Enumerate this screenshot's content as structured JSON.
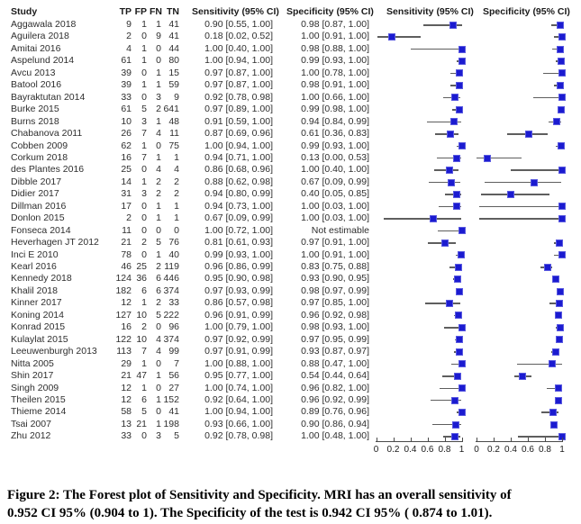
{
  "table_header": {
    "study": "Study",
    "tp": "TP",
    "fp": "FP",
    "fn": "FN",
    "tn": "TN",
    "sensitivity": "Sensitivity (95% CI)",
    "specificity": "Specificity (95% CI)"
  },
  "plot_headers": {
    "sensitivity": "Sensitivity (95% CI)",
    "specificity": "Specificity (95% CI)"
  },
  "not_estimable_label": "Not estimable",
  "colors": {
    "marker_blue": "#1b1bd0",
    "ci_line_gray": "#5e5e5e",
    "axis_color": "#4a4a4a"
  },
  "caption": {
    "line1": "Figure 2: The Forest plot of Sensitivity and Specificity. MRI has an overall sensitivity of",
    "line2": "0.952 CI 95% (0.904 to 1). The Specificity of the test is 0.942 CI 95% ( 0.874 to 1.01)."
  },
  "chart_data": {
    "type": "forest",
    "panels": [
      "Sensitivity (95% CI)",
      "Specificity (95% CI)"
    ],
    "axis": {
      "range": [
        0,
        1
      ],
      "ticks": [
        0,
        0.2,
        0.4,
        0.6,
        0.8,
        1
      ],
      "tick_labels": [
        "0",
        "0.2",
        "0.4",
        "0.6",
        "0.8",
        "1"
      ]
    },
    "overall": {
      "sensitivity": {
        "est": 0.952,
        "ci": [
          0.904,
          1.0
        ]
      },
      "specificity": {
        "est": 0.942,
        "ci": [
          0.874,
          1.01
        ]
      }
    },
    "studies": [
      {
        "study": "Aggawala 2018",
        "tp": 9,
        "fp": 1,
        "fn": 1,
        "tn": 41,
        "sensitivity": {
          "est": 0.9,
          "ci": [
            0.55,
            1.0
          ],
          "label": "0.90 [0.55, 1.00]"
        },
        "specificity": {
          "est": 0.98,
          "ci": [
            0.87,
            1.0
          ],
          "label": "0.98 [0.87, 1.00]"
        }
      },
      {
        "study": "Aguilera 2018",
        "tp": 2,
        "fp": 0,
        "fn": 9,
        "tn": 41,
        "sensitivity": {
          "est": 0.18,
          "ci": [
            0.02,
            0.52
          ],
          "label": "0.18 [0.02, 0.52]"
        },
        "specificity": {
          "est": 1.0,
          "ci": [
            0.91,
            1.0
          ],
          "label": "1.00 [0.91, 1.00]"
        }
      },
      {
        "study": "Amitai 2016",
        "tp": 4,
        "fp": 1,
        "fn": 0,
        "tn": 44,
        "sensitivity": {
          "est": 1.0,
          "ci": [
            0.4,
            1.0
          ],
          "label": "1.00 [0.40, 1.00]"
        },
        "specificity": {
          "est": 0.98,
          "ci": [
            0.88,
            1.0
          ],
          "label": "0.98 [0.88, 1.00]"
        }
      },
      {
        "study": "Aspelund 2014",
        "tp": 61,
        "fp": 1,
        "fn": 0,
        "tn": 80,
        "sensitivity": {
          "est": 1.0,
          "ci": [
            0.94,
            1.0
          ],
          "label": "1.00 [0.94, 1.00]"
        },
        "specificity": {
          "est": 0.99,
          "ci": [
            0.93,
            1.0
          ],
          "label": "0.99 [0.93, 1.00]"
        }
      },
      {
        "study": "Avcu 2013",
        "tp": 39,
        "fp": 0,
        "fn": 1,
        "tn": 15,
        "sensitivity": {
          "est": 0.97,
          "ci": [
            0.87,
            1.0
          ],
          "label": "0.97 [0.87, 1.00]"
        },
        "specificity": {
          "est": 1.0,
          "ci": [
            0.78,
            1.0
          ],
          "label": "1.00 [0.78, 1.00]"
        }
      },
      {
        "study": "Batool 2016",
        "tp": 39,
        "fp": 1,
        "fn": 1,
        "tn": 59,
        "sensitivity": {
          "est": 0.97,
          "ci": [
            0.87,
            1.0
          ],
          "label": "0.97 [0.87, 1.00]"
        },
        "specificity": {
          "est": 0.98,
          "ci": [
            0.91,
            1.0
          ],
          "label": "0.98 [0.91, 1.00]"
        }
      },
      {
        "study": "Bayraktutan 2014",
        "tp": 33,
        "fp": 0,
        "fn": 3,
        "tn": 9,
        "sensitivity": {
          "est": 0.92,
          "ci": [
            0.78,
            0.98
          ],
          "label": "0.92 [0.78, 0.98]"
        },
        "specificity": {
          "est": 1.0,
          "ci": [
            0.66,
            1.0
          ],
          "label": "1.00 [0.66, 1.00]"
        }
      },
      {
        "study": "Burke 2015",
        "tp": 61,
        "fp": 5,
        "fn": 2,
        "tn": 641,
        "sensitivity": {
          "est": 0.97,
          "ci": [
            0.89,
            1.0
          ],
          "label": "0.97 [0.89, 1.00]"
        },
        "specificity": {
          "est": 0.99,
          "ci": [
            0.98,
            1.0
          ],
          "label": "0.99 [0.98, 1.00]"
        }
      },
      {
        "study": "Burns 2018",
        "tp": 10,
        "fp": 3,
        "fn": 1,
        "tn": 48,
        "sensitivity": {
          "est": 0.91,
          "ci": [
            0.59,
            1.0
          ],
          "label": "0.91 [0.59, 1.00]"
        },
        "specificity": {
          "est": 0.94,
          "ci": [
            0.84,
            0.99
          ],
          "label": "0.94 [0.84, 0.99]"
        }
      },
      {
        "study": "Chabanova 2011",
        "tp": 26,
        "fp": 7,
        "fn": 4,
        "tn": 11,
        "sensitivity": {
          "est": 0.87,
          "ci": [
            0.69,
            0.96
          ],
          "label": "0.87 [0.69, 0.96]"
        },
        "specificity": {
          "est": 0.61,
          "ci": [
            0.36,
            0.83
          ],
          "label": "0.61 [0.36, 0.83]"
        }
      },
      {
        "study": "Cobben 2009",
        "tp": 62,
        "fp": 1,
        "fn": 0,
        "tn": 75,
        "sensitivity": {
          "est": 1.0,
          "ci": [
            0.94,
            1.0
          ],
          "label": "1.00 [0.94, 1.00]"
        },
        "specificity": {
          "est": 0.99,
          "ci": [
            0.93,
            1.0
          ],
          "label": "0.99 [0.93, 1.00]"
        }
      },
      {
        "study": "Corkum 2018",
        "tp": 16,
        "fp": 7,
        "fn": 1,
        "tn": 1,
        "sensitivity": {
          "est": 0.94,
          "ci": [
            0.71,
            1.0
          ],
          "label": "0.94 [0.71, 1.00]"
        },
        "specificity": {
          "est": 0.13,
          "ci": [
            0.0,
            0.53
          ],
          "label": "0.13 [0.00, 0.53]"
        }
      },
      {
        "study": "des Plantes 2016",
        "tp": 25,
        "fp": 0,
        "fn": 4,
        "tn": 4,
        "sensitivity": {
          "est": 0.86,
          "ci": [
            0.68,
            0.96
          ],
          "label": "0.86 [0.68, 0.96]"
        },
        "specificity": {
          "est": 1.0,
          "ci": [
            0.4,
            1.0
          ],
          "label": "1.00 [0.40, 1.00]"
        }
      },
      {
        "study": "Dibble 2017",
        "tp": 14,
        "fp": 1,
        "fn": 2,
        "tn": 2,
        "sensitivity": {
          "est": 0.88,
          "ci": [
            0.62,
            0.98
          ],
          "label": "0.88 [0.62, 0.98]"
        },
        "specificity": {
          "est": 0.67,
          "ci": [
            0.09,
            0.99
          ],
          "label": "0.67 [0.09, 0.99]"
        }
      },
      {
        "study": "Didier 2017",
        "tp": 31,
        "fp": 3,
        "fn": 2,
        "tn": 2,
        "sensitivity": {
          "est": 0.94,
          "ci": [
            0.8,
            0.99
          ],
          "label": "0.94 [0.80, 0.99]"
        },
        "specificity": {
          "est": 0.4,
          "ci": [
            0.05,
            0.85
          ],
          "label": "0.40 [0.05, 0.85]"
        }
      },
      {
        "study": "Dillman 2016",
        "tp": 17,
        "fp": 0,
        "fn": 1,
        "tn": 1,
        "sensitivity": {
          "est": 0.94,
          "ci": [
            0.73,
            1.0
          ],
          "label": "0.94 [0.73, 1.00]"
        },
        "specificity": {
          "est": 1.0,
          "ci": [
            0.03,
            1.0
          ],
          "label": "1.00 [0.03, 1.00]"
        }
      },
      {
        "study": "Donlon 2015",
        "tp": 2,
        "fp": 0,
        "fn": 1,
        "tn": 1,
        "sensitivity": {
          "est": 0.67,
          "ci": [
            0.09,
            0.99
          ],
          "label": "0.67 [0.09, 0.99]"
        },
        "specificity": {
          "est": 1.0,
          "ci": [
            0.03,
            1.0
          ],
          "label": "1.00 [0.03, 1.00]"
        }
      },
      {
        "study": "Fonseca 2014",
        "tp": 11,
        "fp": 0,
        "fn": 0,
        "tn": 0,
        "sensitivity": {
          "est": 1.0,
          "ci": [
            0.72,
            1.0
          ],
          "label": "1.00 [0.72, 1.00]"
        },
        "specificity": null
      },
      {
        "study": "Heverhagen JT 2012",
        "tp": 21,
        "fp": 2,
        "fn": 5,
        "tn": 76,
        "sensitivity": {
          "est": 0.81,
          "ci": [
            0.61,
            0.93
          ],
          "label": "0.81 [0.61, 0.93]"
        },
        "specificity": {
          "est": 0.97,
          "ci": [
            0.91,
            1.0
          ],
          "label": "0.97 [0.91, 1.00]"
        }
      },
      {
        "study": "Inci E 2010",
        "tp": 78,
        "fp": 0,
        "fn": 1,
        "tn": 40,
        "sensitivity": {
          "est": 0.99,
          "ci": [
            0.93,
            1.0
          ],
          "label": "0.99 [0.93, 1.00]"
        },
        "specificity": {
          "est": 1.0,
          "ci": [
            0.91,
            1.0
          ],
          "label": "1.00 [0.91, 1.00]"
        }
      },
      {
        "study": "Kearl 2016",
        "tp": 46,
        "fp": 25,
        "fn": 2,
        "tn": 119,
        "sensitivity": {
          "est": 0.96,
          "ci": [
            0.86,
            0.99
          ],
          "label": "0.96 [0.86, 0.99]"
        },
        "specificity": {
          "est": 0.83,
          "ci": [
            0.75,
            0.88
          ],
          "label": "0.83 [0.75, 0.88]"
        }
      },
      {
        "study": "Kennedy 2018",
        "tp": 124,
        "fp": 36,
        "fn": 6,
        "tn": 446,
        "sensitivity": {
          "est": 0.95,
          "ci": [
            0.9,
            0.98
          ],
          "label": "0.95 [0.90, 0.98]"
        },
        "specificity": {
          "est": 0.93,
          "ci": [
            0.9,
            0.95
          ],
          "label": "0.93 [0.90, 0.95]"
        }
      },
      {
        "study": "Khalil 2018",
        "tp": 182,
        "fp": 6,
        "fn": 6,
        "tn": 374,
        "sensitivity": {
          "est": 0.97,
          "ci": [
            0.93,
            0.99
          ],
          "label": "0.97 [0.93, 0.99]"
        },
        "specificity": {
          "est": 0.98,
          "ci": [
            0.97,
            0.99
          ],
          "label": "0.98 [0.97, 0.99]"
        }
      },
      {
        "study": "Kinner 2017",
        "tp": 12,
        "fp": 1,
        "fn": 2,
        "tn": 33,
        "sensitivity": {
          "est": 0.86,
          "ci": [
            0.57,
            0.98
          ],
          "label": "0.86 [0.57, 0.98]"
        },
        "specificity": {
          "est": 0.97,
          "ci": [
            0.85,
            1.0
          ],
          "label": "0.97 [0.85, 1.00]"
        }
      },
      {
        "study": "Koning 2014",
        "tp": 127,
        "fp": 10,
        "fn": 5,
        "tn": 222,
        "sensitivity": {
          "est": 0.96,
          "ci": [
            0.91,
            0.99
          ],
          "label": "0.96 [0.91, 0.99]"
        },
        "specificity": {
          "est": 0.96,
          "ci": [
            0.92,
            0.98
          ],
          "label": "0.96 [0.92, 0.98]"
        }
      },
      {
        "study": "Konrad 2015",
        "tp": 16,
        "fp": 2,
        "fn": 0,
        "tn": 96,
        "sensitivity": {
          "est": 1.0,
          "ci": [
            0.79,
            1.0
          ],
          "label": "1.00 [0.79, 1.00]"
        },
        "specificity": {
          "est": 0.98,
          "ci": [
            0.93,
            1.0
          ],
          "label": "0.98 [0.93, 1.00]"
        }
      },
      {
        "study": "Kulaylat 2015",
        "tp": 122,
        "fp": 10,
        "fn": 4,
        "tn": 374,
        "sensitivity": {
          "est": 0.97,
          "ci": [
            0.92,
            0.99
          ],
          "label": "0.97 [0.92, 0.99]"
        },
        "specificity": {
          "est": 0.97,
          "ci": [
            0.95,
            0.99
          ],
          "label": "0.97 [0.95, 0.99]"
        }
      },
      {
        "study": "Leeuwenburgh 2013",
        "tp": 113,
        "fp": 7,
        "fn": 4,
        "tn": 99,
        "sensitivity": {
          "est": 0.97,
          "ci": [
            0.91,
            0.99
          ],
          "label": "0.97 [0.91, 0.99]"
        },
        "specificity": {
          "est": 0.93,
          "ci": [
            0.87,
            0.97
          ],
          "label": "0.93 [0.87, 0.97]"
        }
      },
      {
        "study": "Nitta 2005",
        "tp": 29,
        "fp": 1,
        "fn": 0,
        "tn": 7,
        "sensitivity": {
          "est": 1.0,
          "ci": [
            0.88,
            1.0
          ],
          "label": "1.00 [0.88, 1.00]"
        },
        "specificity": {
          "est": 0.88,
          "ci": [
            0.47,
            1.0
          ],
          "label": "0.88 [0.47, 1.00]"
        }
      },
      {
        "study": "Shin 2017",
        "tp": 21,
        "fp": 47,
        "fn": 1,
        "tn": 56,
        "sensitivity": {
          "est": 0.95,
          "ci": [
            0.77,
            1.0
          ],
          "label": "0.95 [0.77, 1.00]"
        },
        "specificity": {
          "est": 0.54,
          "ci": [
            0.44,
            0.64
          ],
          "label": "0.54 [0.44, 0.64]"
        }
      },
      {
        "study": "Singh 2009",
        "tp": 12,
        "fp": 1,
        "fn": 0,
        "tn": 27,
        "sensitivity": {
          "est": 1.0,
          "ci": [
            0.74,
            1.0
          ],
          "label": "1.00 [0.74, 1.00]"
        },
        "specificity": {
          "est": 0.96,
          "ci": [
            0.82,
            1.0
          ],
          "label": "0.96 [0.82, 1.00]"
        }
      },
      {
        "study": "Theilen 2015",
        "tp": 12,
        "fp": 6,
        "fn": 1,
        "tn": 152,
        "sensitivity": {
          "est": 0.92,
          "ci": [
            0.64,
            1.0
          ],
          "label": "0.92 [0.64, 1.00]"
        },
        "specificity": {
          "est": 0.96,
          "ci": [
            0.92,
            0.99
          ],
          "label": "0.96 [0.92, 0.99]"
        }
      },
      {
        "study": "Thieme 2014",
        "tp": 58,
        "fp": 5,
        "fn": 0,
        "tn": 41,
        "sensitivity": {
          "est": 1.0,
          "ci": [
            0.94,
            1.0
          ],
          "label": "1.00 [0.94, 1.00]"
        },
        "specificity": {
          "est": 0.89,
          "ci": [
            0.76,
            0.96
          ],
          "label": "0.89 [0.76, 0.96]"
        }
      },
      {
        "study": "Tsai 2007",
        "tp": 13,
        "fp": 21,
        "fn": 1,
        "tn": 198,
        "sensitivity": {
          "est": 0.93,
          "ci": [
            0.66,
            1.0
          ],
          "label": "0.93 [0.66, 1.00]"
        },
        "specificity": {
          "est": 0.9,
          "ci": [
            0.86,
            0.94
          ],
          "label": "0.90 [0.86, 0.94]"
        }
      },
      {
        "study": "Zhu 2012",
        "tp": 33,
        "fp": 0,
        "fn": 3,
        "tn": 5,
        "sensitivity": {
          "est": 0.92,
          "ci": [
            0.78,
            0.98
          ],
          "label": "0.92 [0.78, 0.98]"
        },
        "specificity": {
          "est": 1.0,
          "ci": [
            0.48,
            1.0
          ],
          "label": "1.00 [0.48, 1.00]"
        }
      }
    ]
  }
}
